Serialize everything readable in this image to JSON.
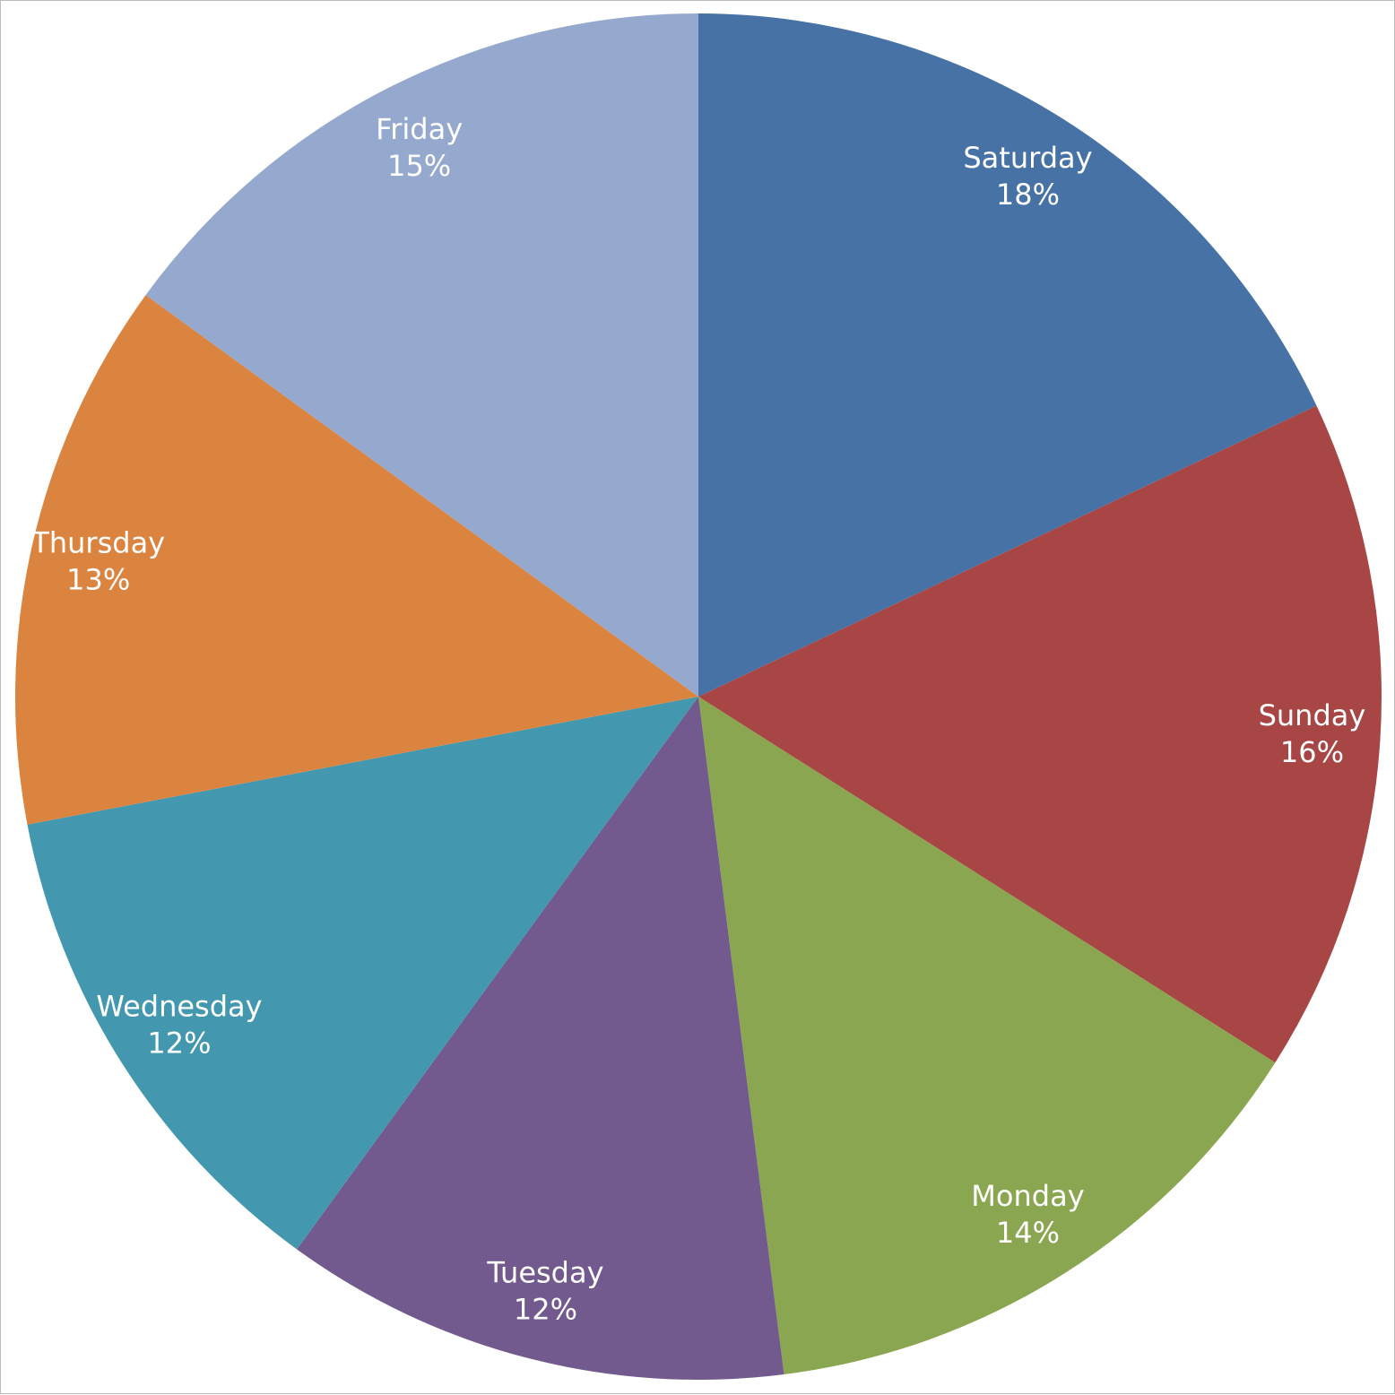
{
  "chart_data": {
    "type": "pie",
    "categories": [
      "Saturday",
      "Sunday",
      "Monday",
      "Tuesday",
      "Wednesday",
      "Thursday",
      "Friday"
    ],
    "values": [
      18,
      16,
      14,
      12,
      12,
      13,
      15
    ],
    "value_labels": [
      "18%",
      "16%",
      "14%",
      "12%",
      "12%",
      "13%",
      "15%"
    ],
    "colors": [
      "#4672a5",
      "#a84646",
      "#8aa650",
      "#725a8e",
      "#4398af",
      "#db8440",
      "#95a9cf"
    ]
  }
}
